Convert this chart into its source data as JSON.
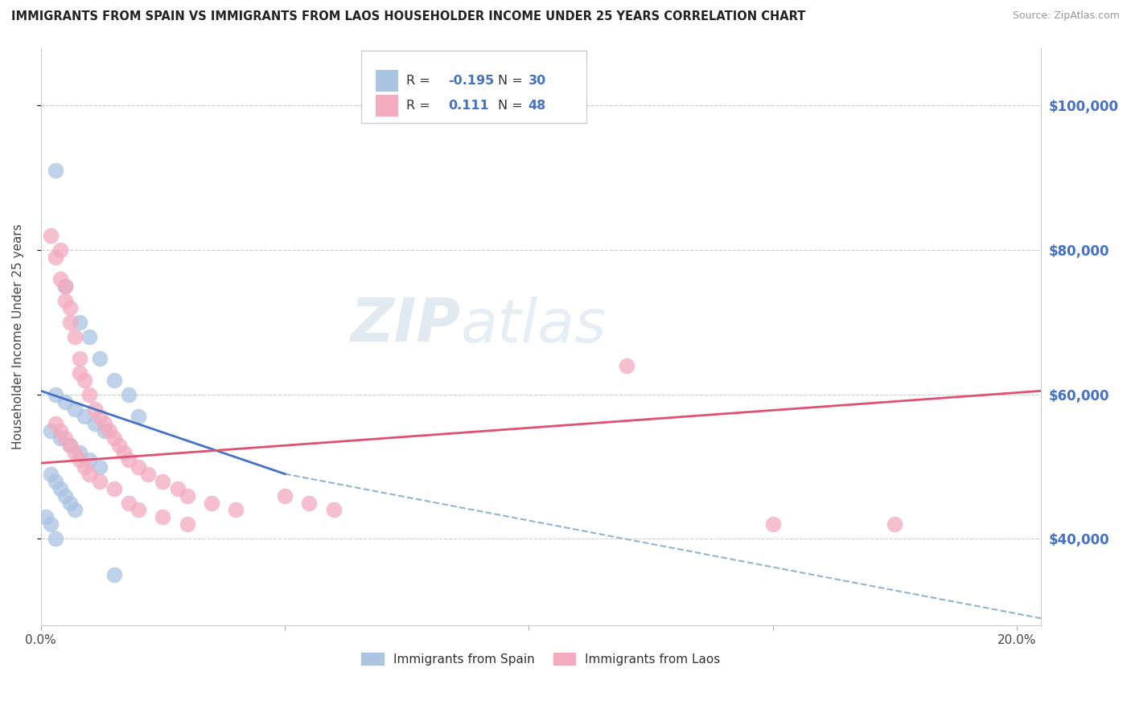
{
  "title": "IMMIGRANTS FROM SPAIN VS IMMIGRANTS FROM LAOS HOUSEHOLDER INCOME UNDER 25 YEARS CORRELATION CHART",
  "source": "Source: ZipAtlas.com",
  "ylabel": "Householder Income Under 25 years",
  "xlim": [
    0.0,
    0.205
  ],
  "ylim": [
    28000,
    108000
  ],
  "xticks": [
    0.0,
    0.05,
    0.1,
    0.15,
    0.2
  ],
  "xtick_labels": [
    "0.0%",
    "",
    "",
    "",
    "20.0%"
  ],
  "yticks_right": [
    40000,
    60000,
    80000,
    100000
  ],
  "ytick_labels_right": [
    "$40,000",
    "$60,000",
    "$80,000",
    "$100,000"
  ],
  "spain_color": "#aac4e2",
  "laos_color": "#f4aabf",
  "spain_R": "-0.195",
  "spain_N": "30",
  "laos_R": "0.111",
  "laos_N": "48",
  "spain_line_color": "#4472c4",
  "laos_line_color": "#e05070",
  "dashed_line_color": "#90b4d4",
  "watermark_zip": "ZIP",
  "watermark_atlas": "atlas",
  "legend_R_color": "#4472c4",
  "legend_N_color": "#4472c4",
  "spain_scatter_x": [
    0.003,
    0.005,
    0.008,
    0.01,
    0.012,
    0.015,
    0.018,
    0.02,
    0.003,
    0.005,
    0.007,
    0.009,
    0.011,
    0.013,
    0.002,
    0.004,
    0.006,
    0.008,
    0.01,
    0.012,
    0.002,
    0.003,
    0.004,
    0.005,
    0.006,
    0.007,
    0.001,
    0.002,
    0.003,
    0.015
  ],
  "spain_scatter_y": [
    91000,
    75000,
    70000,
    68000,
    65000,
    62000,
    60000,
    57000,
    60000,
    59000,
    58000,
    57000,
    56000,
    55000,
    55000,
    54000,
    53000,
    52000,
    51000,
    50000,
    49000,
    48000,
    47000,
    46000,
    45000,
    44000,
    43000,
    42000,
    40000,
    35000
  ],
  "laos_scatter_x": [
    0.002,
    0.003,
    0.004,
    0.004,
    0.005,
    0.005,
    0.006,
    0.006,
    0.007,
    0.008,
    0.008,
    0.009,
    0.01,
    0.011,
    0.012,
    0.013,
    0.014,
    0.015,
    0.016,
    0.017,
    0.018,
    0.02,
    0.022,
    0.025,
    0.028,
    0.03,
    0.035,
    0.04,
    0.003,
    0.004,
    0.005,
    0.006,
    0.007,
    0.008,
    0.009,
    0.01,
    0.012,
    0.015,
    0.018,
    0.02,
    0.025,
    0.03,
    0.05,
    0.055,
    0.06,
    0.12,
    0.15,
    0.175
  ],
  "laos_scatter_y": [
    82000,
    79000,
    80000,
    76000,
    75000,
    73000,
    72000,
    70000,
    68000,
    65000,
    63000,
    62000,
    60000,
    58000,
    57000,
    56000,
    55000,
    54000,
    53000,
    52000,
    51000,
    50000,
    49000,
    48000,
    47000,
    46000,
    45000,
    44000,
    56000,
    55000,
    54000,
    53000,
    52000,
    51000,
    50000,
    49000,
    48000,
    47000,
    45000,
    44000,
    43000,
    42000,
    46000,
    45000,
    44000,
    64000,
    42000,
    42000
  ],
  "spain_line_x": [
    0.0,
    0.05
  ],
  "spain_line_y": [
    60500,
    49000
  ],
  "laos_line_x": [
    0.0,
    0.205
  ],
  "laos_line_y": [
    50500,
    60500
  ],
  "dash_line_x": [
    0.05,
    0.205
  ],
  "dash_line_y": [
    49000,
    29000
  ]
}
